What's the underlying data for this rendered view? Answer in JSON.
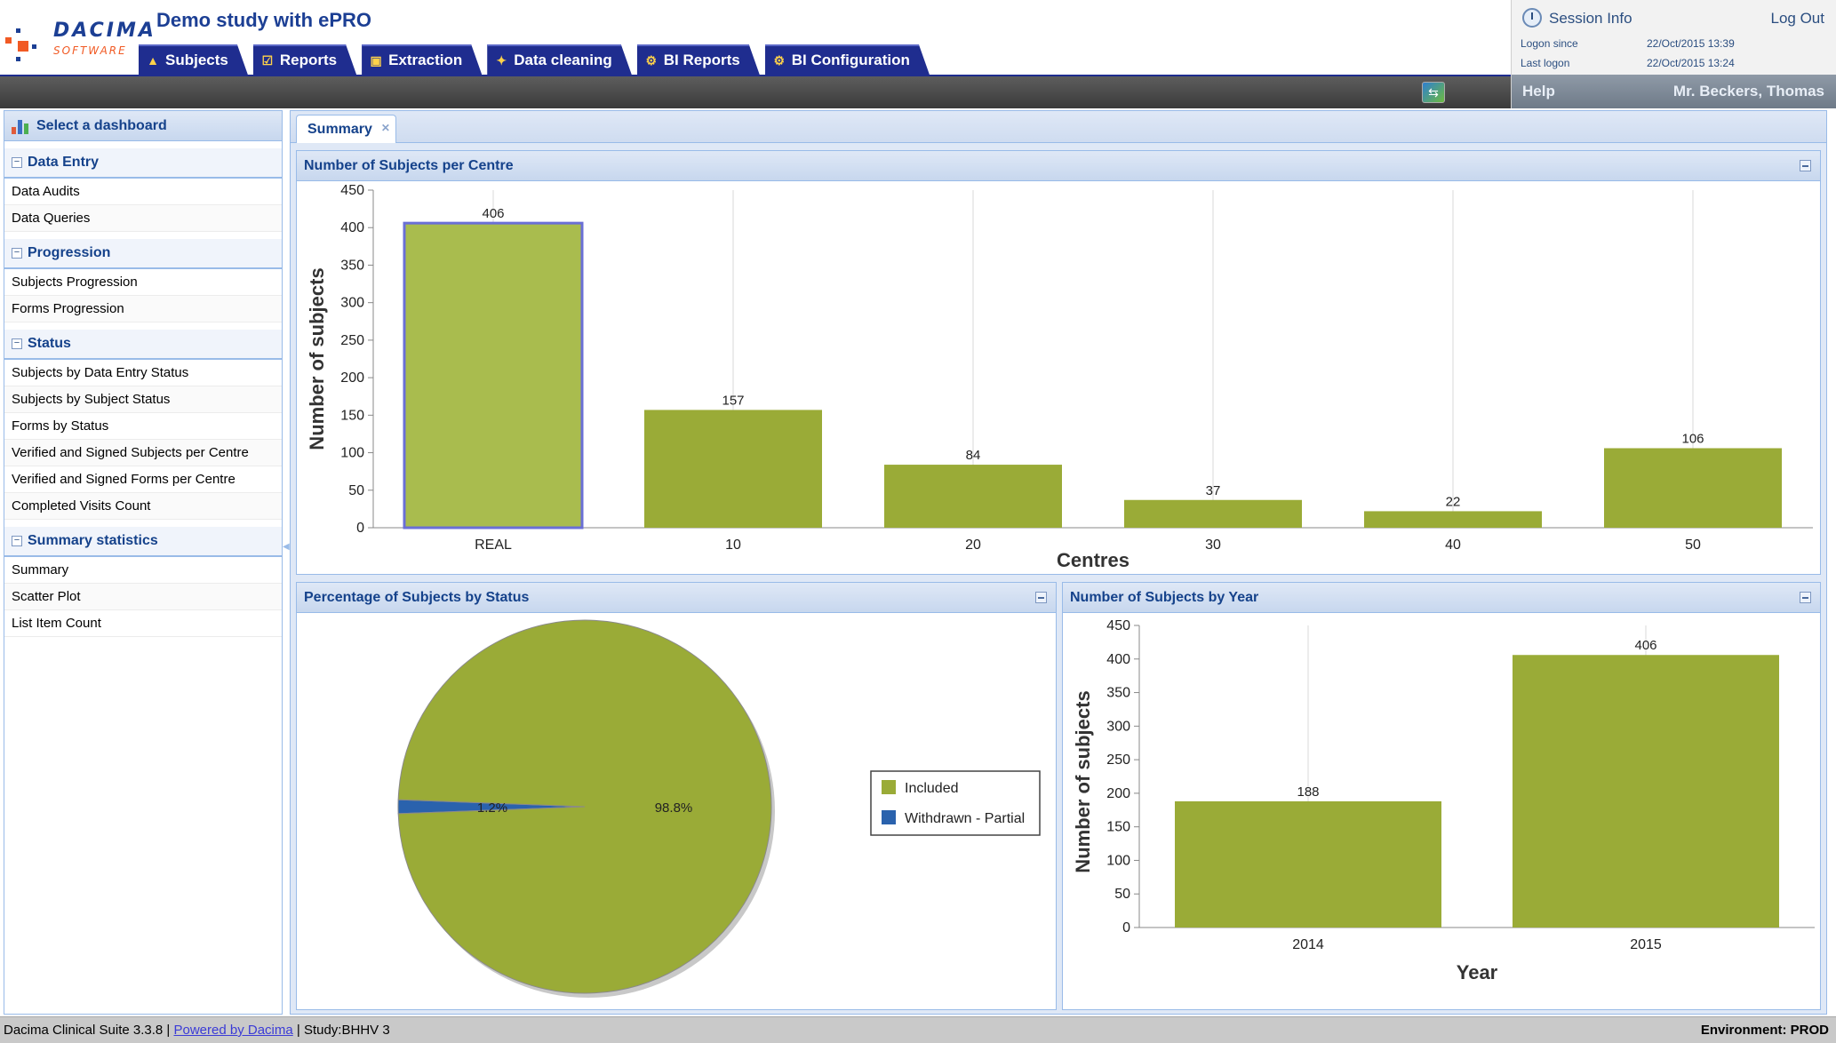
{
  "header": {
    "logo": {
      "word1": "DACIMA",
      "word2": "SOFTWARE"
    },
    "app_title": "Demo study with ePRO",
    "tabs": [
      {
        "label": "Subjects",
        "icon": "person-icon"
      },
      {
        "label": "Reports",
        "icon": "checklist-icon"
      },
      {
        "label": "Extraction",
        "icon": "extraction-icon"
      },
      {
        "label": "Data cleaning",
        "icon": "broom-icon"
      },
      {
        "label": "BI Reports",
        "icon": "gear-icon"
      },
      {
        "label": "BI Configuration",
        "icon": "gear-icon"
      }
    ]
  },
  "session": {
    "title": "Session Info",
    "logout": "Log Out",
    "logon_since_label": "Logon since",
    "logon_since_value": "22/Oct/2015 13:39",
    "last_logon_label": "Last logon",
    "last_logon_value": "22/Oct/2015 13:24",
    "help": "Help",
    "user": "Mr. Beckers, Thomas"
  },
  "sidebar": {
    "title": "Select a dashboard",
    "groups": [
      {
        "label": "Data Entry",
        "items": [
          "Data Audits",
          "Data Queries"
        ]
      },
      {
        "label": "Progression",
        "items": [
          "Subjects Progression",
          "Forms Progression"
        ]
      },
      {
        "label": "Status",
        "items": [
          "Subjects by Data Entry Status",
          "Subjects by Subject Status",
          "Forms by Status",
          "Verified and Signed Subjects per Centre",
          "Verified and Signed Forms per Centre",
          "Completed Visits Count"
        ]
      },
      {
        "label": "Summary statistics",
        "items": [
          "Summary",
          "Scatter Plot",
          "List Item Count"
        ]
      }
    ]
  },
  "content": {
    "tab_label": "Summary",
    "panels": {
      "centre": {
        "title": "Number of Subjects per Centre"
      },
      "status": {
        "title": "Percentage of Subjects by Status"
      },
      "year": {
        "title": "Number of Subjects by Year"
      }
    }
  },
  "colors": {
    "bar": "#9aab37",
    "bar_highlight": "#a9bc4e",
    "withdrawn": "#2a62ad",
    "panel_header": "#15428b"
  },
  "chart_data": [
    {
      "type": "bar",
      "title": "Number of Subjects per Centre",
      "categories": [
        "REAL",
        "10",
        "20",
        "30",
        "40",
        "50"
      ],
      "values": [
        406,
        157,
        84,
        37,
        22,
        106
      ],
      "xlabel": "Centres",
      "ylabel": "Number of subjects",
      "ylim": [
        0,
        450
      ],
      "yticks": [
        0,
        50,
        100,
        150,
        200,
        250,
        300,
        350,
        400,
        450
      ],
      "highlighted": "REAL"
    },
    {
      "type": "pie",
      "title": "Percentage of Subjects by Status",
      "slices": [
        {
          "name": "Included",
          "value": 98.8,
          "label": "98.8%"
        },
        {
          "name": "Withdrawn - Partial",
          "value": 1.2,
          "label": "1.2%"
        }
      ],
      "legend": "right"
    },
    {
      "type": "bar",
      "title": "Number of Subjects by Year",
      "categories": [
        "2014",
        "2015"
      ],
      "values": [
        188,
        406
      ],
      "xlabel": "Year",
      "ylabel": "Number of subjects",
      "ylim": [
        0,
        450
      ],
      "yticks": [
        0,
        50,
        100,
        150,
        200,
        250,
        300,
        350,
        400,
        450
      ]
    }
  ],
  "footer": {
    "version": "Dacima Clinical Suite 3.3.8",
    "powered_by": "Powered by Dacima",
    "study": "Study:BHHV 3",
    "environment": "Environment: PROD"
  }
}
